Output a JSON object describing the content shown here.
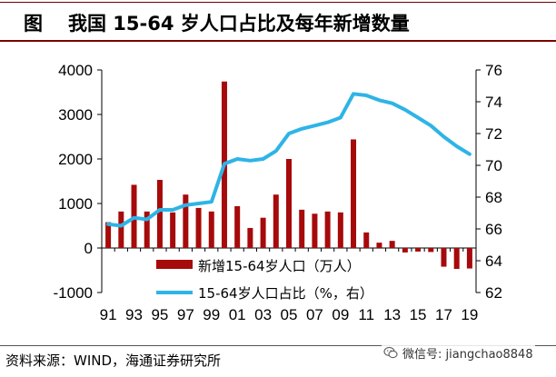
{
  "title": {
    "prefix": "图",
    "text": "我国 15-64 岁人口占比及每年新增数量"
  },
  "source": "资料来源：WIND，海通证券研究所",
  "watermark": {
    "text": "微信号: jiangchao8848",
    "icon": "wechat-icon"
  },
  "colors": {
    "bar": "#a60a0a",
    "line": "#2eb4e6",
    "title_rule": "#7a0000"
  },
  "chart_data": {
    "type": "bar+line",
    "years": [
      1991,
      1992,
      1993,
      1994,
      1995,
      1996,
      1997,
      1998,
      1999,
      2000,
      2001,
      2002,
      2003,
      2004,
      2005,
      2006,
      2007,
      2008,
      2009,
      2010,
      2011,
      2012,
      2013,
      2014,
      2015,
      2016,
      2017,
      2018,
      2019
    ],
    "x_tick_labels": [
      "91",
      "93",
      "95",
      "97",
      "99",
      "01",
      "03",
      "05",
      "07",
      "09",
      "11",
      "13",
      "15",
      "17",
      "19"
    ],
    "series": [
      {
        "name": "新增15-64岁人口（万人）",
        "kind": "bar",
        "axis": "left",
        "values": [
          580,
          820,
          1420,
          820,
          1530,
          800,
          1200,
          900,
          820,
          3740,
          940,
          450,
          680,
          1200,
          2000,
          860,
          770,
          820,
          800,
          2440,
          350,
          120,
          160,
          -100,
          -80,
          -90,
          -420,
          -470,
          -460
        ]
      },
      {
        "name": "15-64岁人口占比（%，右）",
        "kind": "line",
        "axis": "right",
        "values": [
          66.3,
          66.2,
          66.7,
          66.6,
          67.2,
          67.2,
          67.5,
          67.6,
          67.7,
          70.1,
          70.4,
          70.3,
          70.4,
          70.9,
          72.0,
          72.3,
          72.5,
          72.7,
          73.0,
          74.5,
          74.4,
          74.1,
          73.9,
          73.5,
          73.0,
          72.5,
          71.8,
          71.2,
          70.7
        ]
      }
    ],
    "y_left": {
      "min": -1000,
      "max": 4000,
      "ticks": [
        "-1000",
        "0",
        "1000",
        "2000",
        "3000",
        "4000"
      ]
    },
    "y_right": {
      "min": 62,
      "max": 76,
      "ticks": [
        "62",
        "64",
        "66",
        "68",
        "70",
        "72",
        "74",
        "76"
      ]
    },
    "legend": [
      "新增15-64岁人口（万人）",
      "15-64岁人口占比（%，右）"
    ],
    "legend_position": "bottom-center inside plot",
    "grid": false
  }
}
